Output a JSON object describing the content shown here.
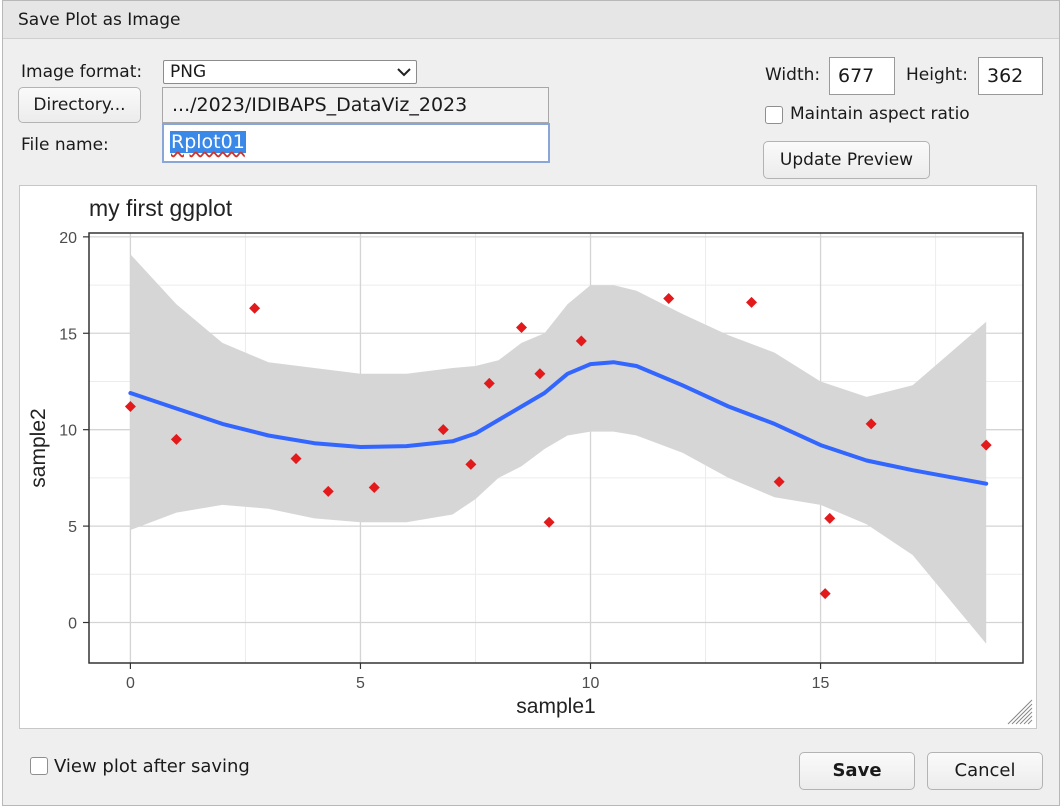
{
  "window": {
    "title": "Save Plot as Image"
  },
  "form": {
    "format_label": "Image format:",
    "format_value": "PNG",
    "directory_button": "Directory...",
    "directory_path": ".../2023/IDIBAPS_DataViz_2023",
    "filename_label": "File name:",
    "filename_value": "Rplot01",
    "width_label": "Width:",
    "width_value": "677",
    "height_label": "Height:",
    "height_value": "362",
    "aspect_label": "Maintain aspect ratio",
    "aspect_checked": false,
    "update_button": "Update Preview"
  },
  "footer": {
    "view_after_label": "View plot after saving",
    "view_after_checked": false,
    "save_button": "Save",
    "cancel_button": "Cancel"
  },
  "colors": {
    "points": "#e31a1c",
    "smooth_line": "#3366ff",
    "ribbon": "#d6d6d6",
    "selection": "#3a88e8"
  },
  "chart_data": {
    "type": "scatter",
    "title": "my first ggplot",
    "xlabel": "sample1",
    "ylabel": "sample2",
    "xlim": [
      -0.9,
      19.4
    ],
    "ylim": [
      -2.1,
      20.2
    ],
    "x_ticks": [
      0,
      5,
      10,
      15
    ],
    "y_ticks": [
      0,
      5,
      10,
      15,
      20
    ],
    "grid": true,
    "points": [
      {
        "x": 0.0,
        "y": 11.2
      },
      {
        "x": 1.0,
        "y": 9.5
      },
      {
        "x": 2.7,
        "y": 16.3
      },
      {
        "x": 3.6,
        "y": 8.5
      },
      {
        "x": 4.3,
        "y": 6.8
      },
      {
        "x": 5.3,
        "y": 7.0
      },
      {
        "x": 6.8,
        "y": 10.0
      },
      {
        "x": 7.4,
        "y": 8.2
      },
      {
        "x": 7.8,
        "y": 12.4
      },
      {
        "x": 8.5,
        "y": 15.3
      },
      {
        "x": 8.9,
        "y": 12.9
      },
      {
        "x": 9.1,
        "y": 5.2
      },
      {
        "x": 9.8,
        "y": 14.6
      },
      {
        "x": 11.7,
        "y": 16.8
      },
      {
        "x": 13.5,
        "y": 16.6
      },
      {
        "x": 14.1,
        "y": 7.3
      },
      {
        "x": 15.1,
        "y": 1.5
      },
      {
        "x": 15.2,
        "y": 5.4
      },
      {
        "x": 16.1,
        "y": 10.3
      },
      {
        "x": 18.6,
        "y": 9.2
      }
    ],
    "smooth": {
      "x": [
        0.0,
        1.0,
        2.0,
        3.0,
        4.0,
        5.0,
        6.0,
        7.0,
        7.5,
        8.0,
        8.5,
        9.0,
        9.5,
        10.0,
        10.5,
        11.0,
        12.0,
        13.0,
        14.0,
        15.0,
        16.0,
        17.0,
        18.6
      ],
      "y": [
        11.9,
        11.1,
        10.3,
        9.7,
        9.3,
        9.1,
        9.15,
        9.4,
        9.8,
        10.5,
        11.2,
        11.9,
        12.9,
        13.4,
        13.5,
        13.3,
        12.3,
        11.2,
        10.3,
        9.2,
        8.4,
        7.9,
        7.2
      ],
      "lower": [
        4.8,
        5.7,
        6.1,
        5.9,
        5.4,
        5.2,
        5.2,
        5.6,
        6.4,
        7.5,
        8.1,
        9.0,
        9.7,
        9.9,
        9.9,
        9.7,
        8.8,
        7.5,
        6.5,
        6.1,
        5.1,
        3.5,
        -1.1
      ],
      "upper": [
        19.1,
        16.5,
        14.5,
        13.5,
        13.2,
        12.9,
        12.9,
        13.2,
        13.3,
        13.6,
        14.5,
        15.0,
        16.5,
        17.5,
        17.5,
        17.2,
        16.0,
        14.9,
        14.0,
        12.5,
        11.7,
        12.3,
        15.6
      ]
    }
  }
}
